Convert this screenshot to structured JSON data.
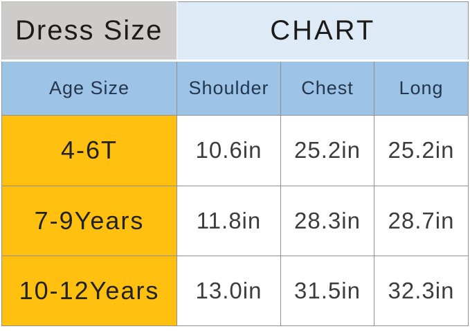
{
  "header": {
    "left_title": "Dress Size",
    "right_title": "CHART"
  },
  "chart_data": {
    "type": "table",
    "title": "Dress Size CHART",
    "columns": [
      "Age Size",
      "Shoulder",
      "Chest",
      "Long"
    ],
    "rows": [
      [
        "4-6T",
        "10.6in",
        "25.2in",
        "25.2in"
      ],
      [
        "7-9Years",
        "11.8in",
        "28.3in",
        "28.7in"
      ],
      [
        "10-12Years",
        "13.0in",
        "31.5in",
        "32.3in"
      ]
    ]
  },
  "colors": {
    "title_left_bg": "#cdcccb",
    "title_right_bg": "#deeaf6",
    "column_header_bg": "#9dc3e6",
    "age_column_bg": "#ffc010",
    "value_cell_bg": "#ffffff",
    "title_text": "#1b1b1b",
    "column_header_text": "#24364d",
    "value_text": "#3c3c3c",
    "grid_border": "#8f8f8f"
  }
}
